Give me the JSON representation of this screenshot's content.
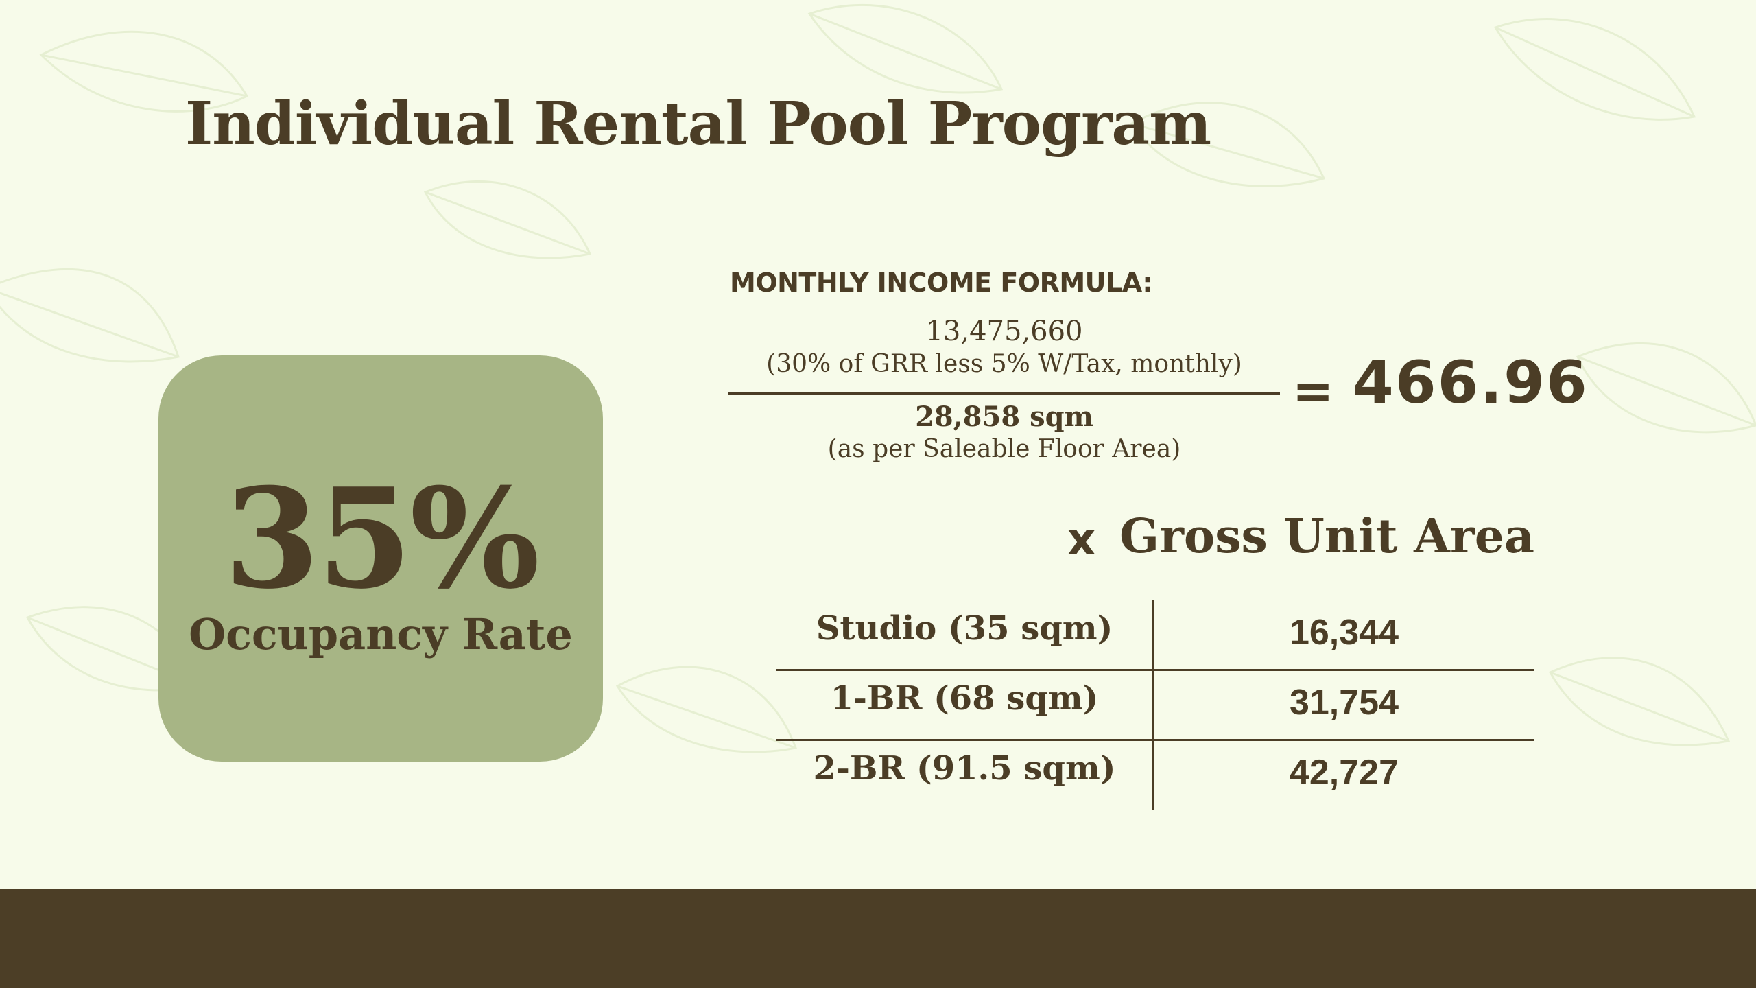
{
  "slide": {
    "title": "Individual Rental Pool Program"
  },
  "occupancy": {
    "value": "35%",
    "label": "Occupancy Rate"
  },
  "formula": {
    "heading": "MONTHLY INCOME FORMULA:",
    "numerator_value": "13,475,660",
    "numerator_note": "(30% of GRR less 5% W/Tax, monthly)",
    "denominator_value": "28,858 sqm",
    "denominator_note": "(as per Saleable Floor Area)",
    "equals": "=",
    "result": "466.96"
  },
  "multiplier": {
    "sign": "x",
    "label": "Gross Unit Area"
  },
  "units_table": {
    "rows": [
      {
        "unit": "Studio (35 sqm)",
        "amount": "16,344"
      },
      {
        "unit": "1-BR (68 sqm)",
        "amount": "31,754"
      },
      {
        "unit": "2-BR (91.5 sqm)",
        "amount": "42,727"
      }
    ]
  },
  "colors": {
    "background": "#f7fbea",
    "text": "#4b3d26",
    "card": "#a7b585",
    "footer": "#4c3e26"
  }
}
